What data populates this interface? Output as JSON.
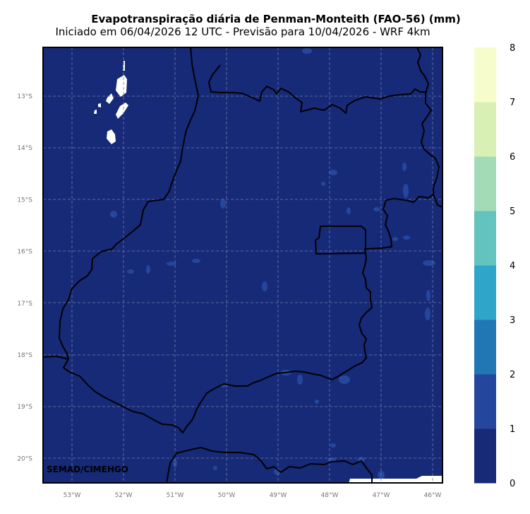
{
  "title": "Evapotranspiração diária de Penman-Monteith (FAO-56) (mm)",
  "subtitle": "Iniciado em 06/04/2026 12 UTC - Previsão para 10/04/2026 - WRF 4km",
  "credit": "SEMAD/CIMEHGO",
  "map": {
    "background_color": "#172a78",
    "x_ticks": [
      "53°W",
      "52°W",
      "51°W",
      "50°W",
      "49°W",
      "48°W",
      "47°W",
      "46°W"
    ],
    "y_ticks": [
      "13°S",
      "14°S",
      "15°S",
      "16°S",
      "17°S",
      "18°S",
      "19°S",
      "20°S"
    ]
  },
  "colorbar": {
    "ticks": [
      "0",
      "1",
      "2",
      "3",
      "4",
      "5",
      "6",
      "7",
      "8"
    ],
    "colors": [
      "#172a78",
      "#24479d",
      "#2176b4",
      "#2ea5c9",
      "#63c3bf",
      "#a3dbb7",
      "#d9f0b4",
      "#f7fccc"
    ]
  }
}
